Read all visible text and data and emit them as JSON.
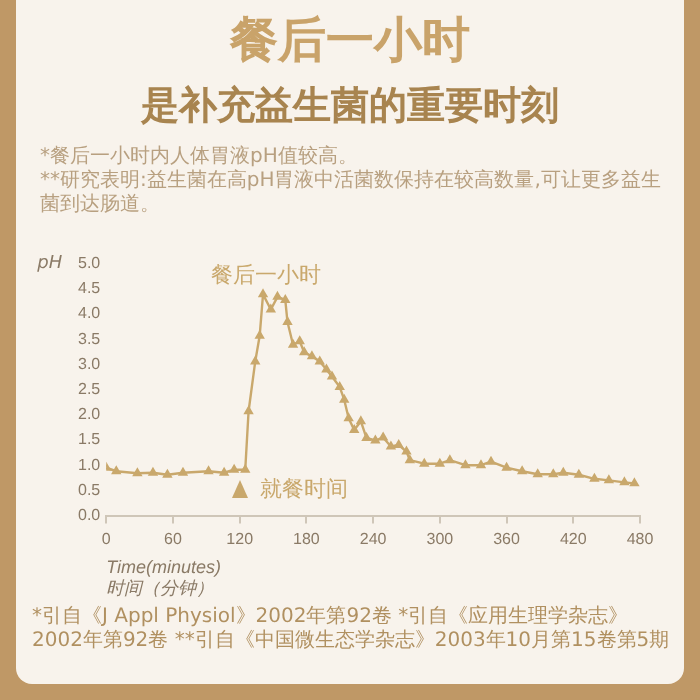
{
  "chart_data": {
    "type": "line",
    "title": "餐后一小时",
    "subtitle": "是补充益生菌的重要时刻",
    "xlabel": "Time(minutes)\n时间（分钟）",
    "ylabel": "pH",
    "annotations": [
      "*餐后一小时内人体胃液pH值较高。",
      "**研究表明:益生菌在高pH胃液中活菌数保持在较高数量,可让更多益生菌到达肠道。",
      "餐后一小时",
      "就餐时间",
      "*引自《J Appl Physiol》2002年第92卷 *引自《应用生理学杂志》2002年第92卷 **引自《中国微生态学杂志》2003年10月第15卷第5期"
    ],
    "series": [
      {
        "color": "#c9a86c",
        "x": [
          0,
          9,
          28,
          42,
          55,
          69,
          92,
          106,
          115,
          125,
          128,
          134,
          138,
          141,
          148,
          154,
          161,
          163,
          168,
          174,
          178,
          185,
          192,
          198,
          203,
          210,
          214,
          218,
          223,
          229,
          234,
          242,
          249,
          256,
          263,
          270,
          273,
          286,
          300,
          309,
          323,
          337,
          346,
          360,
          374,
          388,
          402,
          411,
          425,
          439,
          452,
          466,
          475
        ],
        "values": [
          0.95,
          0.88,
          0.84,
          0.85,
          0.81,
          0.85,
          0.88,
          0.85,
          0.91,
          0.91,
          2.07,
          3.06,
          3.57,
          4.39,
          4.09,
          4.34,
          4.28,
          3.84,
          3.39,
          3.46,
          3.24,
          3.16,
          3.06,
          2.9,
          2.76,
          2.55,
          2.3,
          1.93,
          1.7,
          1.87,
          1.54,
          1.49,
          1.55,
          1.37,
          1.4,
          1.27,
          1.1,
          1.03,
          1.03,
          1.1,
          1.0,
          1.0,
          1.07,
          0.95,
          0.88,
          0.82,
          0.82,
          0.85,
          0.81,
          0.73,
          0.7,
          0.66,
          0.64
        ]
      }
    ],
    "xlim": [
      0,
      480
    ],
    "xticks": [
      0,
      60,
      120,
      180,
      240,
      300,
      360,
      420,
      480
    ],
    "ylim": [
      0,
      5
    ],
    "yticks": [
      {
        "value": 0,
        "label": "0.0"
      },
      0.5,
      {
        "value": 1,
        "label": "1.0"
      },
      1.5,
      {
        "value": 2,
        "label": "2.0"
      },
      2.5,
      {
        "value": 3,
        "label": "3.0"
      },
      3.5,
      {
        "value": 4,
        "label": "4.0"
      },
      4.5,
      {
        "value": 5,
        "label": "5.0"
      }
    ],
    "grid": false,
    "legend": false,
    "marker": "triangle",
    "line_style": "solid"
  }
}
